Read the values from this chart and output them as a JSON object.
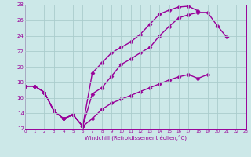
{
  "xlabel": "Windchill (Refroidissement éolien,°C)",
  "bg_color": "#cce8e8",
  "line_color": "#990099",
  "grid_color": "#aacccc",
  "xlim": [
    0,
    23
  ],
  "ylim": [
    12,
    28
  ],
  "xticks": [
    0,
    1,
    2,
    3,
    4,
    5,
    6,
    7,
    8,
    9,
    10,
    11,
    12,
    13,
    14,
    15,
    16,
    17,
    18,
    19,
    20,
    21,
    22,
    23
  ],
  "yticks": [
    12,
    14,
    16,
    18,
    20,
    22,
    24,
    26,
    28
  ],
  "line1_x": [
    0,
    1,
    2,
    3,
    4,
    5,
    6,
    7,
    8,
    9,
    10,
    11,
    12,
    13,
    14,
    15,
    16,
    17,
    18,
    19,
    20,
    21,
    22,
    23
  ],
  "line1_y": [
    17.5,
    17.5,
    16.7,
    14.3,
    13.3,
    13.8,
    12.3,
    16.5,
    17.3,
    18.8,
    20.3,
    21.0,
    21.8,
    22.5,
    24.0,
    25.2,
    26.3,
    26.7,
    27.0,
    27.0,
    25.3,
    23.8,
    null,
    null
  ],
  "line2_x": [
    0,
    1,
    2,
    3,
    4,
    5,
    6,
    7,
    8,
    9,
    10,
    11,
    12,
    13,
    14,
    15,
    16,
    17,
    18,
    19,
    20,
    21,
    22,
    23
  ],
  "line2_y": [
    17.5,
    17.5,
    16.7,
    14.3,
    13.3,
    13.8,
    12.3,
    19.2,
    20.5,
    21.8,
    22.5,
    23.2,
    24.2,
    25.5,
    26.8,
    27.3,
    27.7,
    27.8,
    27.2,
    null,
    null,
    null,
    null,
    null
  ],
  "line3_x": [
    0,
    1,
    2,
    3,
    4,
    5,
    6,
    7,
    8,
    9,
    10,
    11,
    12,
    13,
    14,
    15,
    16,
    17,
    18,
    19,
    20,
    21,
    22,
    23
  ],
  "line3_y": [
    17.5,
    17.5,
    16.7,
    14.3,
    13.3,
    13.8,
    12.3,
    13.3,
    14.5,
    15.3,
    15.8,
    16.3,
    16.8,
    17.3,
    17.8,
    18.3,
    18.7,
    19.0,
    18.5,
    19.0,
    null,
    null,
    null,
    null
  ],
  "marker": "D",
  "markersize": 2.5,
  "linewidth": 1.0
}
